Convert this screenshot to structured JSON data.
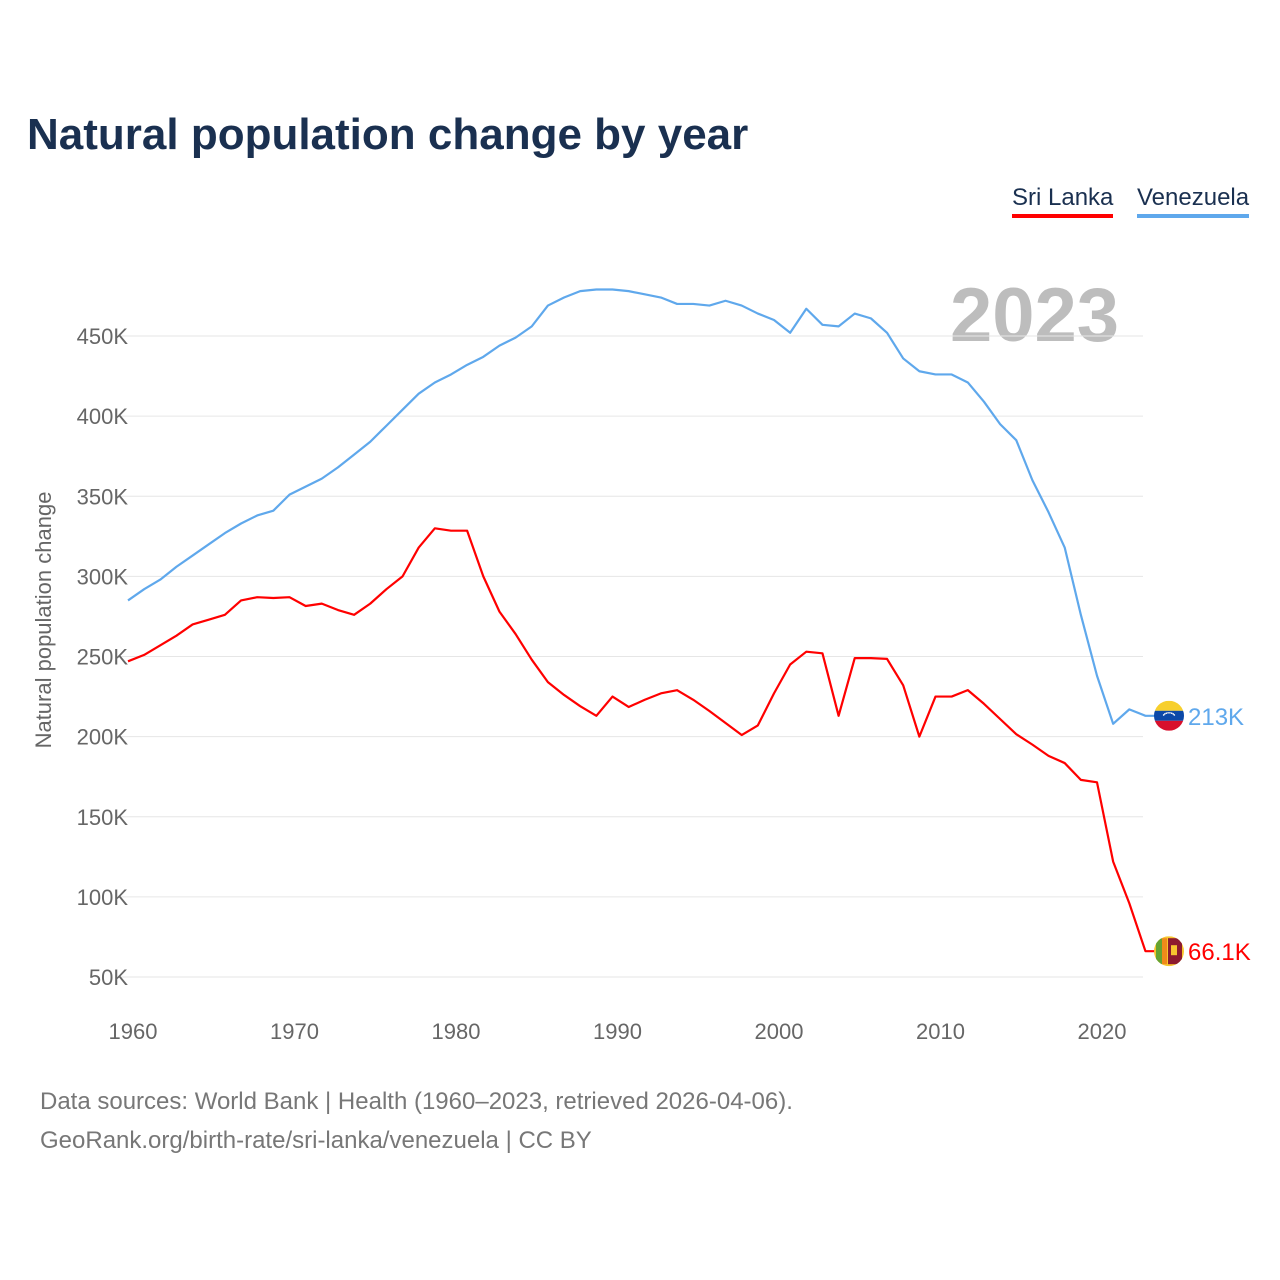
{
  "chart_data": {
    "type": "line",
    "title": "Natural population change by year",
    "ylabel": "Natural population change",
    "xlabel": "",
    "highlight_year": "2023",
    "xlim": [
      1960,
      2023
    ],
    "ylim": [
      30000,
      500000
    ],
    "x_ticks": [
      1960,
      1970,
      1980,
      1990,
      2000,
      2010,
      2020
    ],
    "x_tick_labels": [
      "1960",
      "1970",
      "1980",
      "1990",
      "2000",
      "2010",
      "2020"
    ],
    "y_ticks": [
      50000,
      100000,
      150000,
      200000,
      250000,
      300000,
      350000,
      400000,
      450000
    ],
    "y_tick_labels": [
      "50K",
      "100K",
      "150K",
      "200K",
      "250K",
      "300K",
      "350K",
      "400K",
      "450K"
    ],
    "grid": true,
    "legend_position": "top-right",
    "x": [
      1960,
      1961,
      1962,
      1963,
      1964,
      1965,
      1966,
      1967,
      1968,
      1969,
      1970,
      1971,
      1972,
      1973,
      1974,
      1975,
      1976,
      1977,
      1978,
      1979,
      1980,
      1981,
      1982,
      1983,
      1984,
      1985,
      1986,
      1987,
      1988,
      1989,
      1990,
      1991,
      1992,
      1993,
      1994,
      1995,
      1996,
      1997,
      1998,
      1999,
      2000,
      2001,
      2002,
      2003,
      2004,
      2005,
      2006,
      2007,
      2008,
      2009,
      2010,
      2011,
      2012,
      2013,
      2014,
      2015,
      2016,
      2017,
      2018,
      2019,
      2020,
      2021,
      2022,
      2023
    ],
    "series": [
      {
        "name": "Sri Lanka",
        "color": "#ff0000",
        "end_label": "66.1K",
        "flag": "sri-lanka",
        "values": [
          247000,
          251000,
          257000,
          263000,
          270000,
          273000,
          276000,
          285000,
          287000,
          286500,
          287000,
          281500,
          283000,
          279000,
          276000,
          283000,
          292000,
          300000,
          318000,
          330000,
          328500,
          328500,
          300000,
          278000,
          264000,
          248000,
          234000,
          226000,
          219000,
          213000,
          225000,
          218500,
          223000,
          227000,
          229000,
          223000,
          216000,
          208500,
          201000,
          207000,
          227000,
          245000,
          253000,
          252000,
          213000,
          249000,
          249000,
          248500,
          232000,
          200000,
          225000,
          225000,
          229000,
          220500,
          211000,
          201500,
          195000,
          188000,
          183500,
          173000,
          171500,
          122000,
          96000,
          66100
        ]
      },
      {
        "name": "Venezuela",
        "color": "#5fa8ec",
        "end_label": "213K",
        "flag": "venezuela",
        "values": [
          285000,
          292000,
          298000,
          306000,
          313000,
          320000,
          327000,
          333000,
          338000,
          341000,
          351000,
          356000,
          361000,
          368000,
          376000,
          384000,
          394000,
          404000,
          414000,
          421000,
          426000,
          432000,
          437000,
          444000,
          449000,
          456000,
          469000,
          474000,
          478000,
          479000,
          479000,
          478000,
          476000,
          474000,
          470000,
          470000,
          469000,
          472000,
          469000,
          464000,
          460000,
          452000,
          467000,
          457000,
          456000,
          464000,
          461000,
          452000,
          436000,
          428000,
          426000,
          426000,
          421000,
          409000,
          395000,
          385000,
          360000,
          340000,
          318000,
          276000,
          238000,
          208000,
          217000,
          213000
        ]
      }
    ]
  },
  "footer": {
    "line1": "Data sources: World Bank | Health (1960–2023, retrieved 2026-04-06).",
    "line2": "GeoRank.org/birth-rate/sri-lanka/venezuela | CC BY"
  }
}
